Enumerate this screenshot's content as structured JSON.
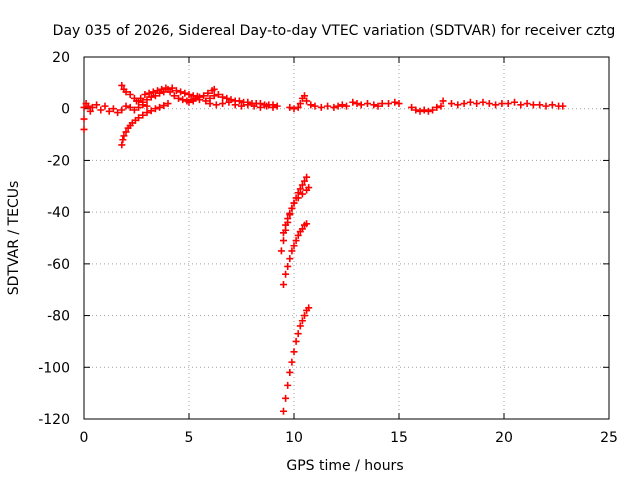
{
  "chart_data": {
    "type": "scatter",
    "title": "Day 035 of 2026, Sidereal Day-to-day VTEC variation (SDTVAR) for receiver cztg",
    "xlabel": "GPS time / hours",
    "ylabel": "SDTVAR / TECUs",
    "xlim": [
      0,
      25
    ],
    "ylim": [
      -120,
      20
    ],
    "xticks": [
      0,
      5,
      10,
      15,
      20,
      25
    ],
    "yticks": [
      -120,
      -100,
      -80,
      -60,
      -40,
      -20,
      0,
      20
    ],
    "grid": true,
    "marker": "plus",
    "color": "#ff0000",
    "series": [
      {
        "points": [
          [
            0.0,
            -8.0
          ],
          [
            0.0,
            -4.0
          ],
          [
            0.0,
            0.5
          ],
          [
            0.1,
            2.0
          ],
          [
            0.2,
            1.0
          ],
          [
            0.3,
            -1.0
          ],
          [
            0.4,
            0.5
          ],
          [
            0.6,
            1.5
          ],
          [
            0.8,
            -0.5
          ],
          [
            1.0,
            1.0
          ],
          [
            1.2,
            -1.0
          ],
          [
            1.4,
            0.0
          ],
          [
            1.6,
            -1.5
          ],
          [
            1.8,
            -0.5
          ],
          [
            2.0,
            1.0
          ],
          [
            2.2,
            0.5
          ],
          [
            2.4,
            -0.5
          ],
          [
            2.6,
            0.5
          ],
          [
            2.8,
            1.5
          ],
          [
            3.0,
            1.0
          ],
          [
            1.8,
            -14.0
          ],
          [
            1.85,
            -12.0
          ],
          [
            1.9,
            -10.5
          ],
          [
            2.0,
            -9.0
          ],
          [
            2.1,
            -7.5
          ],
          [
            2.2,
            -6.5
          ],
          [
            2.3,
            -5.5
          ],
          [
            2.45,
            -4.5
          ],
          [
            2.6,
            -3.5
          ],
          [
            2.8,
            -2.5
          ],
          [
            3.0,
            -1.5
          ],
          [
            3.2,
            -0.8
          ],
          [
            3.4,
            0.0
          ],
          [
            3.6,
            0.5
          ],
          [
            3.8,
            1.2
          ],
          [
            4.0,
            2.0
          ],
          [
            1.8,
            9.0
          ],
          [
            1.9,
            7.5
          ],
          [
            2.0,
            6.5
          ],
          [
            2.2,
            5.5
          ],
          [
            2.4,
            4.0
          ],
          [
            2.6,
            3.0
          ],
          [
            2.8,
            2.5
          ],
          [
            3.0,
            3.5
          ],
          [
            3.2,
            4.5
          ],
          [
            3.4,
            5.0
          ],
          [
            3.6,
            6.0
          ],
          [
            3.8,
            6.5
          ],
          [
            4.0,
            7.5
          ],
          [
            4.2,
            8.0
          ],
          [
            4.4,
            7.0
          ],
          [
            4.6,
            6.5
          ],
          [
            4.8,
            6.0
          ],
          [
            5.0,
            5.5
          ],
          [
            5.2,
            5.0
          ],
          [
            5.4,
            4.8
          ],
          [
            2.5,
            3.0
          ],
          [
            2.7,
            4.0
          ],
          [
            2.9,
            5.5
          ],
          [
            3.1,
            6.0
          ],
          [
            3.3,
            6.5
          ],
          [
            3.5,
            7.0
          ],
          [
            3.7,
            7.5
          ],
          [
            3.9,
            8.0
          ],
          [
            4.1,
            6.5
          ],
          [
            4.3,
            5.0
          ],
          [
            4.5,
            4.0
          ],
          [
            4.7,
            3.5
          ],
          [
            4.9,
            3.0
          ],
          [
            5.1,
            3.5
          ],
          [
            5.3,
            4.0
          ],
          [
            5.5,
            4.5
          ],
          [
            5.7,
            5.0
          ],
          [
            5.9,
            6.0
          ],
          [
            6.1,
            7.0
          ],
          [
            6.2,
            7.5
          ],
          [
            5.0,
            2.5
          ],
          [
            5.2,
            3.0
          ],
          [
            5.5,
            3.5
          ],
          [
            5.8,
            3.0
          ],
          [
            6.0,
            4.0
          ],
          [
            6.2,
            5.0
          ],
          [
            6.4,
            5.5
          ],
          [
            6.6,
            4.5
          ],
          [
            6.8,
            4.0
          ],
          [
            7.0,
            3.5
          ],
          [
            7.2,
            3.0
          ],
          [
            7.4,
            3.0
          ],
          [
            7.6,
            2.5
          ],
          [
            7.8,
            2.5
          ],
          [
            8.0,
            2.0
          ],
          [
            8.2,
            2.0
          ],
          [
            8.4,
            2.0
          ],
          [
            8.6,
            1.5
          ],
          [
            8.8,
            1.5
          ],
          [
            9.0,
            1.5
          ],
          [
            9.2,
            1.0
          ],
          [
            6.0,
            2.0
          ],
          [
            6.3,
            1.5
          ],
          [
            6.6,
            2.0
          ],
          [
            6.9,
            2.5
          ],
          [
            7.2,
            1.5
          ],
          [
            7.5,
            1.0
          ],
          [
            7.8,
            1.5
          ],
          [
            8.1,
            1.0
          ],
          [
            8.4,
            0.5
          ],
          [
            8.7,
            1.0
          ],
          [
            9.0,
            0.5
          ],
          [
            10.3,
            2.0
          ],
          [
            10.4,
            4.0
          ],
          [
            10.5,
            5.0
          ],
          [
            10.6,
            3.0
          ],
          [
            10.8,
            1.5
          ],
          [
            11.0,
            1.0
          ],
          [
            11.3,
            0.5
          ],
          [
            11.6,
            1.0
          ],
          [
            11.9,
            0.5
          ],
          [
            12.1,
            1.0
          ],
          [
            12.3,
            1.5
          ],
          [
            9.8,
            0.5
          ],
          [
            10.0,
            0.0
          ],
          [
            10.2,
            0.5
          ],
          [
            12.5,
            1.0
          ],
          [
            12.8,
            2.5
          ],
          [
            13.0,
            2.0
          ],
          [
            13.2,
            1.5
          ],
          [
            13.5,
            2.0
          ],
          [
            13.8,
            1.5
          ],
          [
            14.0,
            1.0
          ],
          [
            14.2,
            2.0
          ],
          [
            14.5,
            2.0
          ],
          [
            14.8,
            2.5
          ],
          [
            15.0,
            2.0
          ],
          [
            15.6,
            0.5
          ],
          [
            15.8,
            -0.5
          ],
          [
            16.0,
            -1.0
          ],
          [
            16.2,
            -0.5
          ],
          [
            16.4,
            -1.0
          ],
          [
            16.6,
            -0.5
          ],
          [
            16.8,
            0.5
          ],
          [
            17.0,
            1.0
          ],
          [
            17.1,
            3.0
          ],
          [
            17.5,
            2.0
          ],
          [
            17.8,
            1.5
          ],
          [
            18.1,
            2.0
          ],
          [
            18.4,
            2.5
          ],
          [
            18.7,
            2.0
          ],
          [
            19.0,
            2.5
          ],
          [
            19.3,
            2.0
          ],
          [
            19.6,
            1.5
          ],
          [
            19.9,
            2.0
          ],
          [
            20.2,
            2.0
          ],
          [
            20.5,
            2.5
          ],
          [
            20.8,
            1.5
          ],
          [
            21.1,
            2.0
          ],
          [
            21.4,
            1.5
          ],
          [
            21.7,
            1.5
          ],
          [
            22.0,
            1.0
          ],
          [
            22.3,
            1.5
          ],
          [
            22.6,
            1.0
          ],
          [
            22.8,
            1.0
          ],
          [
            9.5,
            -117.0
          ],
          [
            9.6,
            -112.0
          ],
          [
            9.7,
            -107.0
          ],
          [
            9.8,
            -102.0
          ],
          [
            9.9,
            -98.0
          ],
          [
            10.0,
            -94.0
          ],
          [
            10.1,
            -90.0
          ],
          [
            10.2,
            -87.0
          ],
          [
            10.3,
            -84.0
          ],
          [
            10.4,
            -82.0
          ],
          [
            10.5,
            -80.0
          ],
          [
            10.6,
            -78.0
          ],
          [
            10.7,
            -77.0
          ],
          [
            9.5,
            -68.0
          ],
          [
            9.6,
            -64.0
          ],
          [
            9.7,
            -61.0
          ],
          [
            9.8,
            -58.0
          ],
          [
            9.9,
            -55.0
          ],
          [
            10.0,
            -53.0
          ],
          [
            10.1,
            -51.0
          ],
          [
            10.2,
            -49.0
          ],
          [
            10.3,
            -47.5
          ],
          [
            10.4,
            -46.5
          ],
          [
            10.5,
            -45.0
          ],
          [
            10.6,
            -44.5
          ],
          [
            9.4,
            -55.0
          ],
          [
            9.5,
            -51.0
          ],
          [
            9.6,
            -47.0
          ],
          [
            9.7,
            -44.0
          ],
          [
            9.8,
            -41.0
          ],
          [
            9.9,
            -38.5
          ],
          [
            10.0,
            -36.5
          ],
          [
            10.1,
            -34.5
          ],
          [
            10.2,
            -32.5
          ],
          [
            10.3,
            -31.0
          ],
          [
            10.4,
            -29.5
          ],
          [
            10.5,
            -28.0
          ],
          [
            10.6,
            -26.5
          ],
          [
            9.5,
            -48.0
          ],
          [
            9.6,
            -45.0
          ],
          [
            9.7,
            -42.5
          ],
          [
            9.8,
            -40.5
          ],
          [
            9.9,
            -38.5
          ],
          [
            10.0,
            -36.5
          ],
          [
            10.2,
            -34.5
          ],
          [
            10.4,
            -33.0
          ],
          [
            10.6,
            -31.5
          ],
          [
            10.7,
            -30.5
          ]
        ]
      }
    ]
  }
}
